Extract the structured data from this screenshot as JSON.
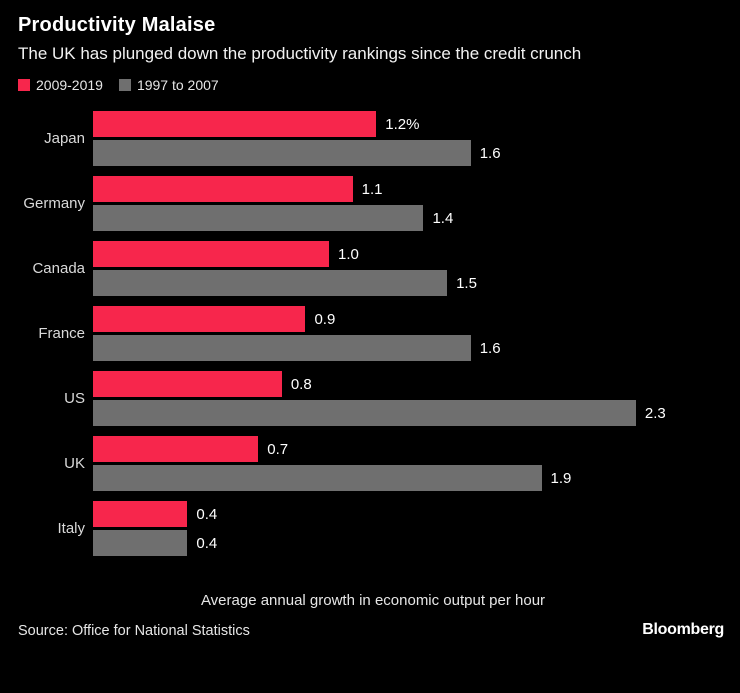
{
  "chart_data": {
    "type": "bar",
    "orientation": "horizontal",
    "title": "Productivity Malaise",
    "subtitle": "The UK has plunged down the productivity rankings since the credit crunch",
    "categories": [
      "Japan",
      "Germany",
      "Canada",
      "France",
      "US",
      "UK",
      "Italy"
    ],
    "series": [
      {
        "name": "2009-2019",
        "color": "#f7264c",
        "values": [
          1.2,
          1.1,
          1.0,
          0.9,
          0.8,
          0.7,
          0.4
        ],
        "labels": [
          "1.2%",
          "1.1",
          "1.0",
          "0.9",
          "0.8",
          "0.7",
          "0.4"
        ]
      },
      {
        "name": "1997 to 2007",
        "color": "#6f6f6f",
        "values": [
          1.6,
          1.4,
          1.5,
          1.6,
          2.3,
          1.9,
          0.4
        ],
        "labels": [
          "1.6",
          "1.4",
          "1.5",
          "1.6",
          "2.3",
          "1.9",
          "0.4"
        ]
      }
    ],
    "xmax": 2.69,
    "grid": false,
    "legend_position": "top-left",
    "footnote": "Average annual growth in economic output per hour",
    "source": "Source: Office for National Statistics",
    "brand": "Bloomberg"
  }
}
